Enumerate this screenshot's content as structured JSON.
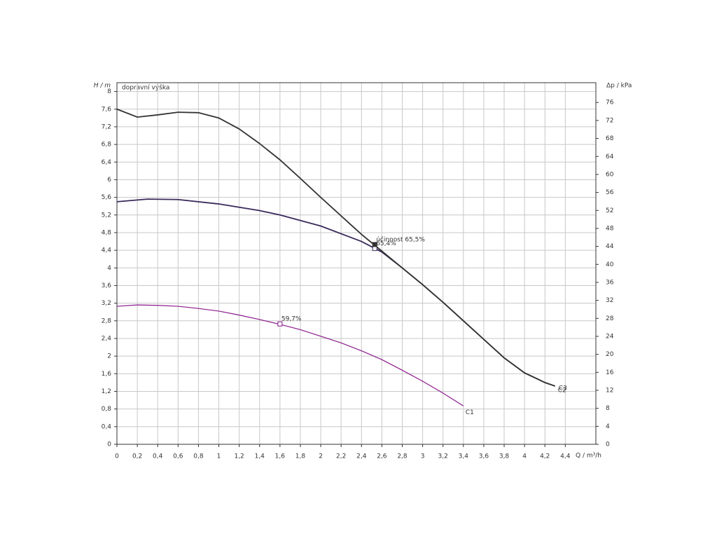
{
  "chart_data": {
    "type": "line",
    "title": "dopravní výška",
    "y_label": "H / m",
    "y2_label": "Δp / kPa",
    "x_label": "Q / m³/h",
    "xlim": [
      0,
      4.7
    ],
    "ylim": [
      0,
      8.2
    ],
    "y2lim": [
      0,
      80.4
    ],
    "grid": true,
    "xticks": [
      0,
      {
        "value": 0.2,
        "label": "0,2"
      },
      {
        "value": 0.4,
        "label": "0,4"
      },
      {
        "value": 0.6,
        "label": "0,6"
      },
      {
        "value": 0.8,
        "label": "0,8"
      },
      1,
      {
        "value": 1.2,
        "label": "1,2"
      },
      {
        "value": 1.4,
        "label": "1,4"
      },
      {
        "value": 1.6,
        "label": "1,6"
      },
      {
        "value": 1.8,
        "label": "1,8"
      },
      2,
      {
        "value": 2.2,
        "label": "2,2"
      },
      {
        "value": 2.4,
        "label": "2,4"
      },
      {
        "value": 2.6,
        "label": "2,6"
      },
      {
        "value": 2.8,
        "label": "2,8"
      },
      3,
      {
        "value": 3.2,
        "label": "3,2"
      },
      {
        "value": 3.4,
        "label": "3,4"
      },
      {
        "value": 3.6,
        "label": "3,6"
      },
      {
        "value": 3.8,
        "label": "3,8"
      },
      4,
      {
        "value": 4.2,
        "label": "4,2"
      },
      {
        "value": 4.4,
        "label": "4,4"
      }
    ],
    "yticks": [
      0,
      {
        "value": 0.4,
        "label": "0,4"
      },
      {
        "value": 0.8,
        "label": "0,8"
      },
      {
        "value": 1.2,
        "label": "1,2"
      },
      {
        "value": 1.6,
        "label": "1,6"
      },
      2,
      {
        "value": 2.4,
        "label": "2,4"
      },
      {
        "value": 2.8,
        "label": "2,8"
      },
      {
        "value": 3.2,
        "label": "3,2"
      },
      {
        "value": 3.6,
        "label": "3,6"
      },
      4,
      {
        "value": 4.4,
        "label": "4,4"
      },
      {
        "value": 4.8,
        "label": "4,8"
      },
      {
        "value": 5.2,
        "label": "5,2"
      },
      {
        "value": 5.6,
        "label": "5,6"
      },
      6,
      {
        "value": 6.4,
        "label": "6,4"
      },
      {
        "value": 6.8,
        "label": "6,8"
      },
      {
        "value": 7.2,
        "label": "7,2"
      },
      {
        "value": 7.6,
        "label": "7,6"
      },
      8
    ],
    "y2ticks": [
      0,
      4,
      8,
      12,
      16,
      20,
      24,
      28,
      32,
      36,
      40,
      44,
      48,
      52,
      56,
      60,
      64,
      68,
      72,
      76
    ],
    "series": [
      {
        "name": "C1",
        "color": "#8b1a8b",
        "x": [
          0,
          0.2,
          0.4,
          0.6,
          0.8,
          1.0,
          1.2,
          1.4,
          1.6,
          1.8,
          2.0,
          2.2,
          2.4,
          2.6,
          2.8,
          3.0,
          3.2,
          3.4
        ],
        "values": [
          3.13,
          3.16,
          3.15,
          3.13,
          3.08,
          3.02,
          2.93,
          2.83,
          2.72,
          2.6,
          2.45,
          2.3,
          2.12,
          1.92,
          1.68,
          1.43,
          1.16,
          0.87
        ]
      },
      {
        "name": "C2",
        "color": "#3a2a5a",
        "x": [
          0,
          0.3,
          0.6,
          1.0,
          1.4,
          1.6,
          2.0,
          2.4,
          2.6,
          2.8,
          3.0,
          3.2,
          3.4,
          3.6,
          3.8,
          4.0,
          4.2,
          4.3
        ],
        "values": [
          5.5,
          5.56,
          5.55,
          5.45,
          5.3,
          5.2,
          4.95,
          4.6,
          4.36,
          4.0,
          3.62,
          3.22,
          2.8,
          2.38,
          1.96,
          1.62,
          1.4,
          1.32
        ]
      },
      {
        "name": "C3",
        "color": "#333333",
        "x": [
          0,
          0.2,
          0.4,
          0.6,
          0.8,
          1.0,
          1.2,
          1.4,
          1.6,
          1.8,
          2.0,
          2.2,
          2.4,
          2.6,
          2.8,
          3.0,
          3.2,
          3.4,
          3.6,
          3.8,
          4.0,
          4.2,
          4.3
        ],
        "values": [
          7.6,
          7.42,
          7.47,
          7.53,
          7.52,
          7.4,
          7.15,
          6.82,
          6.45,
          6.03,
          5.6,
          5.18,
          4.76,
          4.38,
          4.0,
          3.62,
          3.22,
          2.8,
          2.38,
          1.96,
          1.62,
          1.4,
          1.32
        ]
      }
    ],
    "annotations": [
      {
        "text": "59,7%",
        "x": 1.6,
        "y": 2.73,
        "series": 0
      },
      {
        "text": "65,4%",
        "x": 2.53,
        "y": 4.44,
        "series": 1
      },
      {
        "text": "účinnost  65,5%",
        "x": 2.53,
        "y": 4.53,
        "series": 2
      }
    ]
  }
}
